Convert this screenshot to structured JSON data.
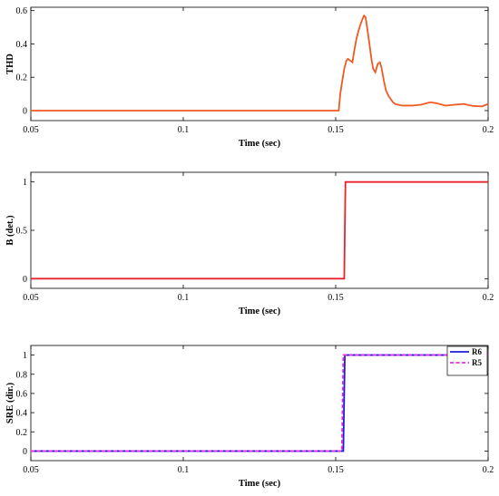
{
  "chart_data": [
    {
      "type": "line",
      "xlabel": "Time (sec)",
      "ylabel": "THD",
      "xlim": [
        0.05,
        0.2
      ],
      "ylim": [
        -0.06,
        0.62
      ],
      "xticks": [
        "0.05",
        "0.1",
        "0.15",
        "0.2"
      ],
      "yticks": [
        "0",
        "0.2",
        "0.4",
        "0.6"
      ],
      "legend": null,
      "series": [
        {
          "color": "#f05a22",
          "style": "solid",
          "x": [
            0.05,
            0.151,
            0.1515,
            0.152,
            0.1528,
            0.1535,
            0.154,
            0.1548,
            0.1555,
            0.156,
            0.1568,
            0.1575,
            0.158,
            0.1588,
            0.1593,
            0.1598,
            0.1603,
            0.161,
            0.1618,
            0.1623,
            0.163,
            0.1638,
            0.1645,
            0.165,
            0.1658,
            0.1665,
            0.1673,
            0.168,
            0.1688,
            0.1695,
            0.1705,
            0.172,
            0.175,
            0.178,
            0.181,
            0.183,
            0.186,
            0.189,
            0.192,
            0.195,
            0.198,
            0.2
          ],
          "y": [
            0,
            0,
            0.1,
            0.16,
            0.25,
            0.3,
            0.31,
            0.3,
            0.29,
            0.35,
            0.43,
            0.48,
            0.51,
            0.55,
            0.57,
            0.56,
            0.5,
            0.41,
            0.3,
            0.25,
            0.23,
            0.28,
            0.29,
            0.26,
            0.18,
            0.12,
            0.09,
            0.07,
            0.05,
            0.04,
            0.035,
            0.03,
            0.03,
            0.035,
            0.05,
            0.045,
            0.03,
            0.035,
            0.04,
            0.028,
            0.025,
            0.04
          ]
        }
      ]
    },
    {
      "type": "line",
      "xlabel": "Time (sec)",
      "ylabel": "B (det.)",
      "xlim": [
        0.05,
        0.2
      ],
      "ylim": [
        -0.1,
        1.1
      ],
      "xticks": [
        "0.05",
        "0.1",
        "0.15",
        "0.2"
      ],
      "yticks": [
        "0",
        "0.5",
        "1"
      ],
      "legend": null,
      "series": [
        {
          "color": "#e8222a",
          "style": "solid",
          "x": [
            0.05,
            0.1528,
            0.1532,
            0.2
          ],
          "y": [
            0,
            0,
            1,
            1
          ]
        }
      ]
    },
    {
      "type": "line",
      "xlabel": "Time (sec)",
      "ylabel": "SRE (dir.)",
      "xlim": [
        0.05,
        0.2
      ],
      "ylim": [
        -0.1,
        1.1
      ],
      "xticks": [
        "0.05",
        "0.1",
        "0.15",
        "0.2"
      ],
      "yticks": [
        "0",
        "0.2",
        "0.4",
        "0.6",
        "0.8",
        "1"
      ],
      "legend": "top-right",
      "series": [
        {
          "name": "R6",
          "color": "#1b1bd6",
          "style": "solid",
          "x": [
            0.05,
            0.1525,
            0.153,
            0.2
          ],
          "y": [
            0,
            0,
            1,
            1
          ]
        },
        {
          "name": "R5",
          "color": "#e62ee6",
          "style": "dashed",
          "x": [
            0.05,
            0.152,
            0.1525,
            0.2
          ],
          "y": [
            0,
            0,
            1,
            1
          ]
        }
      ]
    }
  ]
}
